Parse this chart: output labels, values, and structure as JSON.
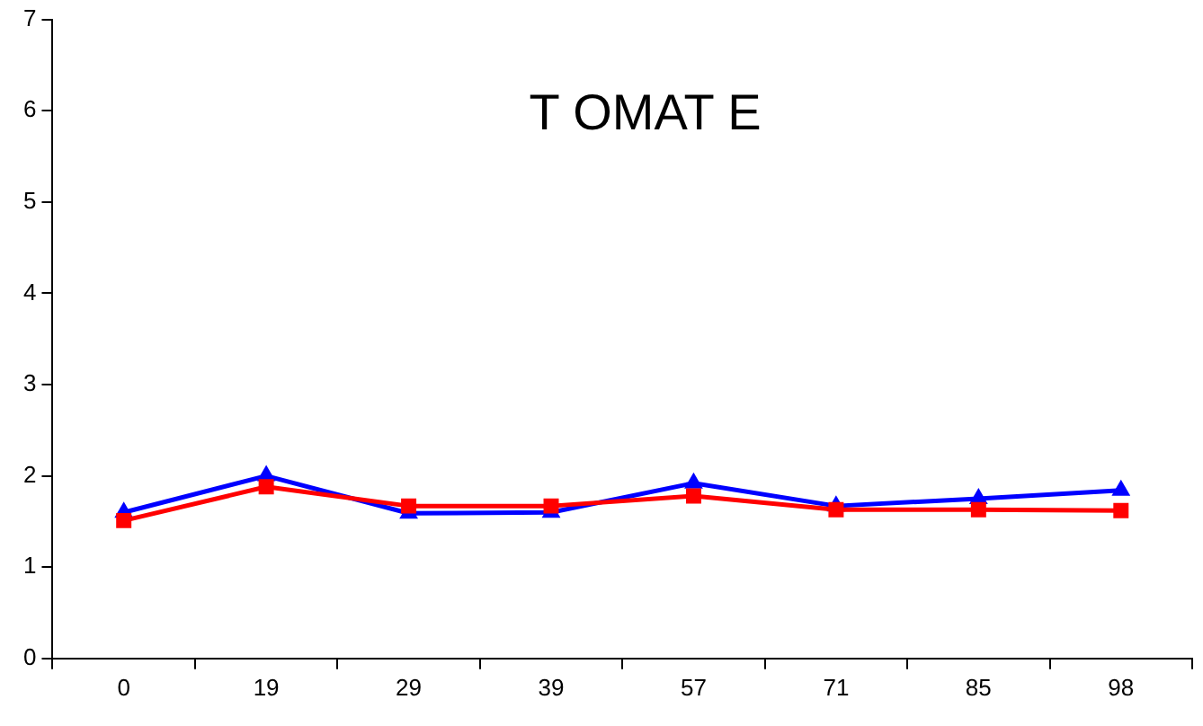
{
  "chart_data": {
    "type": "line",
    "title": "T OMAT E",
    "categories": [
      "0",
      "19",
      "29",
      "39",
      "57",
      "71",
      "85",
      "98"
    ],
    "series": [
      {
        "color": "#0000ff",
        "marker": "triangle",
        "values": [
          1.6,
          2.0,
          1.59,
          1.6,
          1.92,
          1.67,
          1.75,
          1.84
        ]
      },
      {
        "color": "#ff0000",
        "marker": "square",
        "values": [
          1.51,
          1.88,
          1.67,
          1.67,
          1.78,
          1.63,
          1.63,
          1.62
        ]
      }
    ],
    "ylim": [
      0,
      7
    ],
    "yticks": [
      0,
      1,
      2,
      3,
      4,
      5,
      6,
      7
    ],
    "grid": false,
    "legend": false
  }
}
